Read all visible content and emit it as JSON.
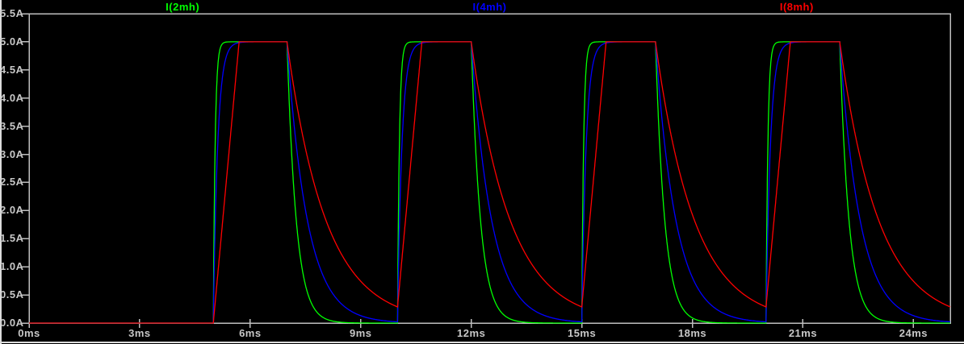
{
  "window": {
    "background": "#000000",
    "edge_color": "#DCDCDC"
  },
  "plot": {
    "background": "#000000",
    "border_color": "#BEBEBE",
    "tick_color": "#BEBEBE",
    "label_color": "#C8C8C8"
  },
  "chart_data": {
    "type": "line",
    "title": "",
    "grid": false,
    "legend_position": "top",
    "x_axis": {
      "unit": "ms",
      "min_ms": 0,
      "max_ms": 25,
      "tick_interval_ms": 3,
      "tick_values_ms": [
        0,
        3,
        6,
        9,
        12,
        15,
        18,
        21,
        24
      ],
      "tick_labels": [
        "0ms",
        "3ms",
        "6ms",
        "9ms",
        "12ms",
        "15ms",
        "18ms",
        "21ms",
        "24ms"
      ]
    },
    "y_axis": {
      "unit": "A",
      "min_A": 0,
      "max_A": 5.5,
      "tick_interval_A": 0.5,
      "tick_values_A": [
        0,
        0.5,
        1,
        1.5,
        2,
        2.5,
        3,
        3.5,
        4,
        4.5,
        5,
        5.5
      ],
      "tick_labels": [
        "0.0A",
        "0.5A",
        "1.0A",
        "1.5A",
        "2.0A",
        "2.5A",
        "3.0A",
        "3.5A",
        "4.0A",
        "4.5A",
        "5.0A",
        "5.5A"
      ]
    },
    "series": [
      {
        "name": "I(2mh)",
        "color": "#00FF00",
        "peak_A": 5.0,
        "waveform": {
          "kind": "pulsed-rl-current",
          "initial_A": 0,
          "pulse_start_times_ms": [
            5,
            10,
            15,
            20
          ],
          "pulse_period_ms": 5,
          "on_duration_ms": 2,
          "rise_shape": "exp",
          "rise_tau_ms": 0.05,
          "rise_time_ms": 0.15,
          "decay_shape": "exp",
          "decay_tau_ms": 0.25
        }
      },
      {
        "name": "I(4mh)",
        "color": "#0000FF",
        "peak_A": 5.0,
        "waveform": {
          "kind": "pulsed-rl-current",
          "initial_A": 0,
          "pulse_start_times_ms": [
            5,
            10,
            15,
            20
          ],
          "pulse_period_ms": 5,
          "on_duration_ms": 2,
          "rise_shape": "exp",
          "rise_tau_ms": 0.12,
          "rise_time_ms": 0.38,
          "decay_shape": "exp",
          "decay_tau_ms": 0.55
        }
      },
      {
        "name": "I(8mh)",
        "color": "#FF0000",
        "peak_A": 5.0,
        "waveform": {
          "kind": "pulsed-rl-current",
          "initial_A": 0,
          "pulse_start_times_ms": [
            5,
            10,
            15,
            20
          ],
          "pulse_period_ms": 5,
          "on_duration_ms": 2,
          "rise_shape": "linear",
          "rise_time_ms": 0.7,
          "decay_shape": "exp",
          "decay_tau_ms": 1.05
        }
      }
    ]
  }
}
